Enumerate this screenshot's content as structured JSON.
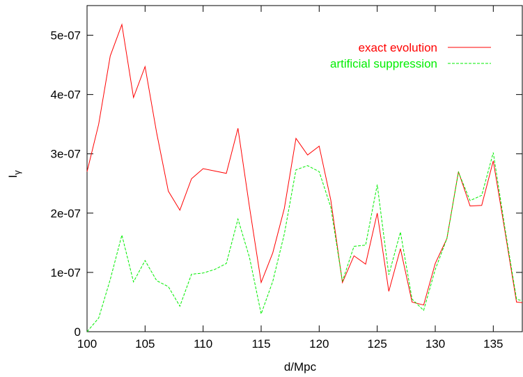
{
  "chart_data": {
    "type": "line",
    "xlabel": "d/Mpc",
    "ylabel": "I",
    "ylabel_subscript": "γ",
    "xlim": [
      100,
      137.5
    ],
    "ylim": [
      0,
      5.5e-07
    ],
    "xticks": [
      100,
      105,
      110,
      115,
      120,
      125,
      130,
      135
    ],
    "xtick_labels": [
      "100",
      "105",
      "110",
      "115",
      "120",
      "125",
      "130",
      "135"
    ],
    "yticks": [
      0,
      1e-07,
      2e-07,
      3e-07,
      4e-07,
      5e-07
    ],
    "ytick_labels": [
      "0",
      "1e-07",
      "2e-07",
      "3e-07",
      "4e-07",
      "5e-07"
    ],
    "grid": false,
    "legend_position": "top-right",
    "series": [
      {
        "name": "exact evolution",
        "color": "#ff0000",
        "dash": "solid",
        "x": [
          100,
          101,
          102,
          103,
          104,
          105,
          106,
          107,
          108,
          109,
          110,
          111,
          112,
          113,
          114,
          115,
          116,
          117,
          118,
          119,
          120,
          121,
          122,
          123,
          124,
          125,
          126,
          127,
          128,
          129,
          130,
          131,
          132,
          133,
          134,
          135,
          136,
          137,
          137.5
        ],
        "values": [
          2.7e-07,
          3.5e-07,
          4.65e-07,
          5.18e-07,
          3.95e-07,
          4.47e-07,
          3.35e-07,
          2.37e-07,
          2.05e-07,
          2.58e-07,
          2.75e-07,
          2.71e-07,
          2.67e-07,
          3.43e-07,
          2.1e-07,
          8.3e-08,
          1.33e-07,
          2.08e-07,
          3.26e-07,
          2.98e-07,
          3.13e-07,
          2.22e-07,
          8.3e-08,
          1.28e-07,
          1.14e-07,
          2e-07,
          6.8e-08,
          1.4e-07,
          5e-08,
          4.5e-08,
          1.15e-07,
          1.57e-07,
          2.7e-07,
          2.12e-07,
          2.13e-07,
          2.88e-07,
          1.7e-07,
          5e-08,
          4.9e-08
        ]
      },
      {
        "name": "artificial suppression",
        "color": "#00ee00",
        "dash": "dashed",
        "x": [
          100,
          101,
          102,
          103,
          104,
          105,
          106,
          107,
          108,
          109,
          110,
          111,
          112,
          113,
          114,
          115,
          116,
          117,
          118,
          119,
          120,
          121,
          122,
          123,
          124,
          125,
          126,
          127,
          128,
          129,
          130,
          131,
          132,
          133,
          134,
          135,
          136,
          137,
          137.5
        ],
        "values": [
          0,
          2.3e-08,
          8.8e-08,
          1.63e-07,
          8.4e-08,
          1.2e-07,
          8.6e-08,
          7.6e-08,
          4.3e-08,
          9.7e-08,
          9.9e-08,
          1.05e-07,
          1.15e-07,
          1.9e-07,
          1.25e-07,
          3e-08,
          8.5e-08,
          1.65e-07,
          2.73e-07,
          2.8e-07,
          2.7e-07,
          2.1e-07,
          8.5e-08,
          1.44e-07,
          1.46e-07,
          2.48e-07,
          9.6e-08,
          1.68e-07,
          5.5e-08,
          3.6e-08,
          1.05e-07,
          1.57e-07,
          2.69e-07,
          2.21e-07,
          2.3e-07,
          3.02e-07,
          1.75e-07,
          5.5e-08,
          5.2e-08
        ]
      }
    ]
  }
}
